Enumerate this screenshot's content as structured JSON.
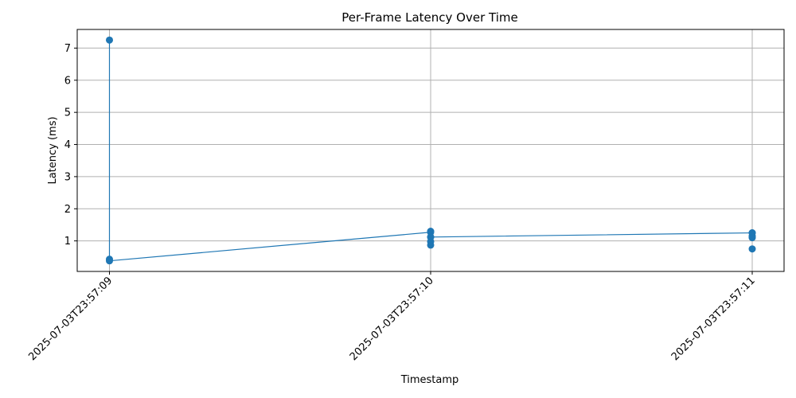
{
  "chart_data": {
    "type": "line",
    "title": "Per-Frame Latency Over Time",
    "xlabel": "Timestamp",
    "ylabel": "Latency (ms)",
    "x_categories": [
      "2025-07-03T23:57:09",
      "2025-07-03T23:57:10",
      "2025-07-03T23:57:11"
    ],
    "yticks": [
      1,
      2,
      3,
      4,
      5,
      6,
      7
    ],
    "ylim": [
      0.05,
      7.58
    ],
    "grid": true,
    "legend": "none",
    "series": [
      {
        "color": "#1f77b4",
        "points": [
          {
            "x": "2025-07-03T23:57:09",
            "y": 7.25
          },
          {
            "x": "2025-07-03T23:57:09",
            "y": 0.43
          },
          {
            "x": "2025-07-03T23:57:09",
            "y": 0.38
          },
          {
            "x": "2025-07-03T23:57:10",
            "y": 1.27
          },
          {
            "x": "2025-07-03T23:57:10",
            "y": 1.3
          },
          {
            "x": "2025-07-03T23:57:10",
            "y": 1.12
          },
          {
            "x": "2025-07-03T23:57:10",
            "y": 0.98
          },
          {
            "x": "2025-07-03T23:57:10",
            "y": 0.87
          },
          {
            "x": "2025-07-03T23:57:10",
            "y": 1.12
          },
          {
            "x": "2025-07-03T23:57:11",
            "y": 1.25
          },
          {
            "x": "2025-07-03T23:57:11",
            "y": 1.15
          },
          {
            "x": "2025-07-03T23:57:11",
            "y": 1.1
          },
          {
            "x": "2025-07-03T23:57:11",
            "y": 0.75
          },
          {
            "x": "2025-07-03T23:57:11",
            "y": 1.25
          }
        ],
        "line_path": [
          {
            "x": "2025-07-03T23:57:09",
            "y": 7.25
          },
          {
            "x": "2025-07-03T23:57:09",
            "y": 0.38
          },
          {
            "x": "2025-07-03T23:57:10",
            "y": 1.27
          },
          {
            "x": "2025-07-03T23:57:10",
            "y": 0.87
          },
          {
            "x": "2025-07-03T23:57:10",
            "y": 1.12
          },
          {
            "x": "2025-07-03T23:57:11",
            "y": 1.25
          }
        ]
      }
    ]
  }
}
